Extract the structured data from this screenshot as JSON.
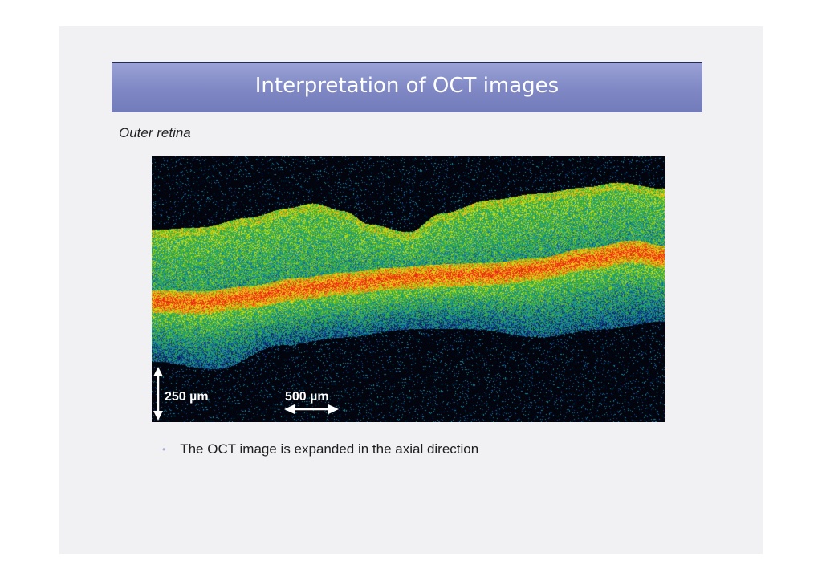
{
  "slide": {
    "title": "Interpretation of OCT images",
    "subtitle": "Outer retina",
    "image": {
      "vertical_scale_label": "250 µm",
      "horizontal_scale_label": "500 µm"
    },
    "bullets": [
      "The OCT image is expanded in the axial direction"
    ],
    "colors": {
      "title_bar": "#7f88c4",
      "slide_background": "#f1f1f4",
      "bullet_marker": "#a9acd6"
    }
  }
}
